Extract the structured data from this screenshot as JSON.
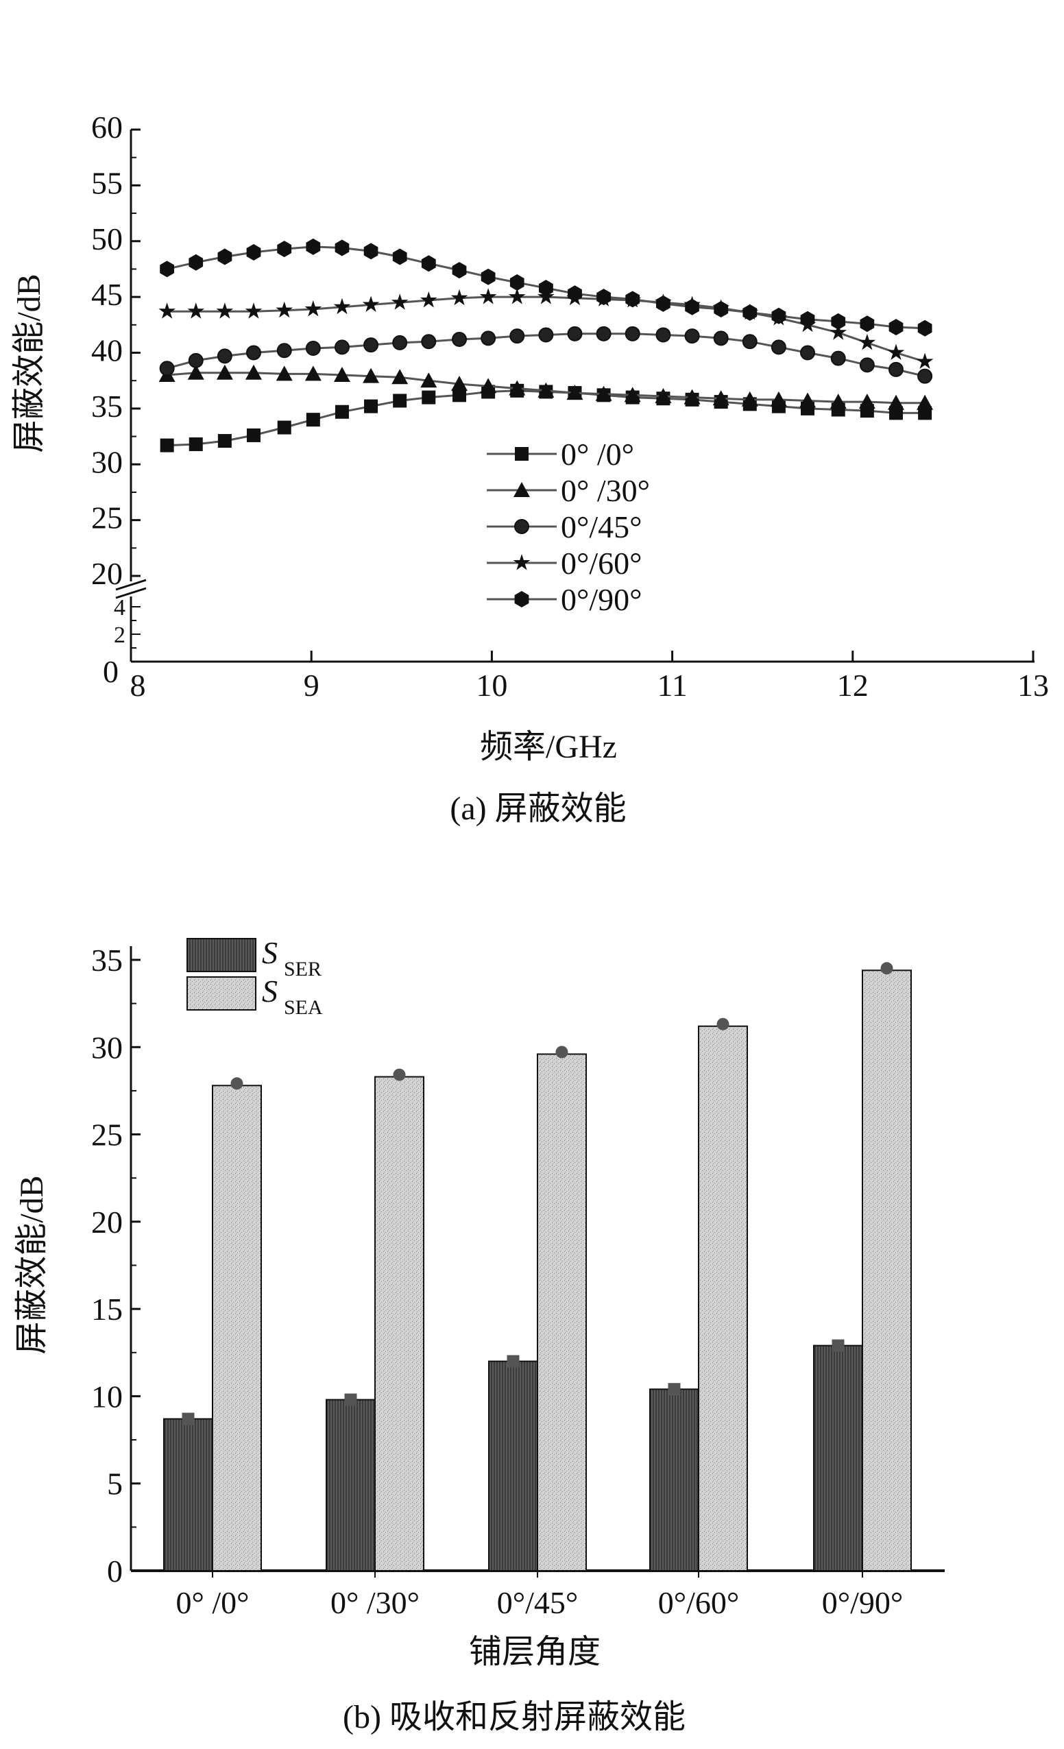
{
  "chart_data": [
    {
      "type": "line",
      "title": "(a) 屏蔽效能",
      "xlabel": "频率/GHz",
      "ylabel": "屏蔽效能/dB",
      "xlim": [
        8,
        13
      ],
      "ylim": [
        0,
        60
      ],
      "y_axis_break": [
        5,
        20
      ],
      "x_ticks": [
        "8",
        "9",
        "10",
        "11",
        "12",
        "13"
      ],
      "y_ticks_upper": [
        "20",
        "25",
        "30",
        "35",
        "40",
        "45",
        "50",
        "55",
        "60"
      ],
      "y_ticks_lower": [
        "0",
        "2",
        "4"
      ],
      "legend_position": "center-bottom",
      "x": [
        8.2,
        8.36,
        8.52,
        8.68,
        8.85,
        9.01,
        9.17,
        9.33,
        9.49,
        9.65,
        9.82,
        9.98,
        10.14,
        10.3,
        10.46,
        10.62,
        10.78,
        10.95,
        11.11,
        11.27,
        11.43,
        11.59,
        11.75,
        11.92,
        12.08,
        12.24,
        12.4
      ],
      "series": [
        {
          "name": "0° /0°",
          "marker": "square",
          "values": [
            31.7,
            31.8,
            32.1,
            32.6,
            33.3,
            34.0,
            34.7,
            35.2,
            35.7,
            36.0,
            36.2,
            36.5,
            36.6,
            36.5,
            36.4,
            36.2,
            36.0,
            35.9,
            35.8,
            35.6,
            35.4,
            35.2,
            35.0,
            34.9,
            34.8,
            34.6,
            34.6
          ]
        },
        {
          "name": "0° /30°",
          "marker": "triangle",
          "values": [
            38.0,
            38.2,
            38.2,
            38.2,
            38.1,
            38.1,
            38.0,
            37.9,
            37.8,
            37.5,
            37.2,
            37.0,
            36.8,
            36.6,
            36.4,
            36.3,
            36.2,
            36.1,
            36.0,
            35.9,
            35.8,
            35.8,
            35.7,
            35.6,
            35.6,
            35.5,
            35.5
          ]
        },
        {
          "name": "0°/45°",
          "marker": "circle",
          "values": [
            38.6,
            39.3,
            39.7,
            40.0,
            40.2,
            40.4,
            40.5,
            40.7,
            40.9,
            41.0,
            41.2,
            41.3,
            41.5,
            41.6,
            41.7,
            41.7,
            41.7,
            41.6,
            41.5,
            41.3,
            41.0,
            40.5,
            40.0,
            39.5,
            38.9,
            38.5,
            37.9
          ]
        },
        {
          "name": "0°/60°",
          "marker": "star",
          "values": [
            43.7,
            43.7,
            43.7,
            43.7,
            43.8,
            43.9,
            44.1,
            44.3,
            44.5,
            44.7,
            44.9,
            45.0,
            45.0,
            45.0,
            44.9,
            44.8,
            44.7,
            44.5,
            44.3,
            44.0,
            43.6,
            43.1,
            42.5,
            41.8,
            40.9,
            40.0,
            39.2
          ]
        },
        {
          "name": "0°/90°",
          "marker": "hexagon",
          "values": [
            47.5,
            48.1,
            48.6,
            49.0,
            49.3,
            49.5,
            49.4,
            49.1,
            48.6,
            48.0,
            47.4,
            46.8,
            46.3,
            45.8,
            45.3,
            45.0,
            44.8,
            44.4,
            44.1,
            43.9,
            43.6,
            43.3,
            43.0,
            42.8,
            42.6,
            42.3,
            42.2
          ]
        }
      ]
    },
    {
      "type": "bar",
      "title": "(b) 吸收和反射屏蔽效能",
      "xlabel": "铺层角度",
      "ylabel": "屏蔽效能/dB",
      "ylim": [
        0,
        35
      ],
      "y_ticks": [
        "0",
        "5",
        "10",
        "15",
        "20",
        "25",
        "30",
        "35"
      ],
      "categories": [
        "0° /0°",
        "0° /30°",
        "0°/45°",
        "0°/60°",
        "0°/90°"
      ],
      "legend_position": "top-left",
      "series": [
        {
          "name": "S",
          "sub": "SER",
          "color": "#555555",
          "values": [
            8.7,
            9.8,
            12.0,
            10.4,
            12.9
          ]
        },
        {
          "name": "S",
          "sub": "SEA",
          "color": "#c8c8c8",
          "values": [
            27.8,
            28.3,
            29.6,
            31.2,
            34.4
          ]
        }
      ]
    }
  ]
}
